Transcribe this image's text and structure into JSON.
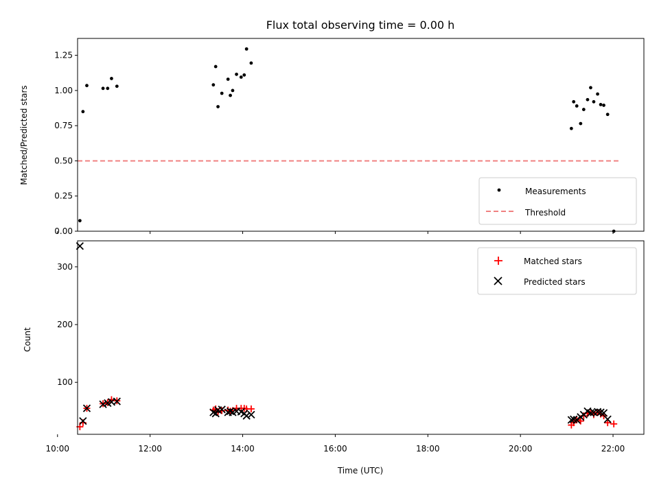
{
  "colors": {
    "measurement": "#000000",
    "threshold": "#f08080",
    "matched": "#ff0000",
    "predicted": "#000000",
    "frame": "#000000",
    "legend_border": "#cccccc"
  },
  "chart_data": [
    {
      "type": "scatter",
      "title": "Flux total observing time = 0.00 h",
      "xlabel": "",
      "ylabel": "Matched/Predicted stars",
      "x_unit": "time (UTC)",
      "xlim": [
        "10:26",
        "22:40"
      ],
      "ylim": [
        0,
        1.37
      ],
      "yticks": [
        0.0,
        0.25,
        0.5,
        0.75,
        1.0,
        1.25
      ],
      "ytick_labels": [
        "0.00",
        "0.25",
        "0.50",
        "0.75",
        "1.00",
        "1.25"
      ],
      "legend_position": "lower right",
      "series": [
        {
          "name": "Measurements",
          "marker": "dot",
          "points": [
            [
              "10:29",
              0.075
            ],
            [
              "10:33",
              0.85
            ],
            [
              "10:38",
              1.035
            ],
            [
              "10:59",
              1.015
            ],
            [
              "11:05",
              1.015
            ],
            [
              "11:10",
              1.085
            ],
            [
              "11:17",
              1.03
            ],
            [
              "13:22",
              1.04
            ],
            [
              "13:25",
              1.17
            ],
            [
              "13:28",
              0.885
            ],
            [
              "13:33",
              0.98
            ],
            [
              "13:41",
              1.08
            ],
            [
              "13:44",
              0.965
            ],
            [
              "13:47",
              1.0
            ],
            [
              "13:52",
              1.115
            ],
            [
              "13:58",
              1.095
            ],
            [
              "14:02",
              1.11
            ],
            [
              "14:05",
              1.295
            ],
            [
              "14:11",
              1.195
            ],
            [
              "21:06",
              0.73
            ],
            [
              "21:09",
              0.92
            ],
            [
              "21:13",
              0.89
            ],
            [
              "21:18",
              0.765
            ],
            [
              "21:22",
              0.865
            ],
            [
              "21:27",
              0.935
            ],
            [
              "21:31",
              1.02
            ],
            [
              "21:35",
              0.92
            ],
            [
              "21:40",
              0.975
            ],
            [
              "21:44",
              0.9
            ],
            [
              "21:48",
              0.895
            ],
            [
              "21:53",
              0.83
            ],
            [
              "22:01",
              0.0
            ]
          ]
        },
        {
          "name": "Threshold",
          "marker": "dashed-line",
          "points": [
            [
              "10:26",
              0.5
            ],
            [
              "22:07",
              0.5
            ]
          ]
        }
      ]
    },
    {
      "type": "scatter",
      "title": "",
      "xlabel": "Time (UTC)",
      "ylabel": "Count",
      "x_unit": "time (UTC)",
      "xlim": [
        "10:26",
        "22:40"
      ],
      "ylim": [
        10,
        345
      ],
      "yticks": [
        100,
        200,
        300
      ],
      "ytick_labels": [
        "100",
        "200",
        "300"
      ],
      "xtick_labels": [
        "10:00",
        "12:00",
        "14:00",
        "16:00",
        "18:00",
        "20:00",
        "22:00"
      ],
      "legend_position": "upper right",
      "series": [
        {
          "name": "Matched stars",
          "marker": "plus",
          "points": [
            [
              "10:29",
              23
            ],
            [
              "10:33",
              30
            ],
            [
              "10:38",
              55
            ],
            [
              "10:59",
              63
            ],
            [
              "11:05",
              65
            ],
            [
              "11:10",
              70
            ],
            [
              "11:17",
              68
            ],
            [
              "13:22",
              52
            ],
            [
              "13:25",
              54
            ],
            [
              "13:28",
              49
            ],
            [
              "13:33",
              51
            ],
            [
              "13:41",
              52
            ],
            [
              "13:44",
              50
            ],
            [
              "13:47",
              51
            ],
            [
              "13:52",
              55
            ],
            [
              "13:58",
              55
            ],
            [
              "14:02",
              55
            ],
            [
              "14:05",
              54
            ],
            [
              "14:11",
              54
            ],
            [
              "21:06",
              26
            ],
            [
              "21:09",
              30
            ],
            [
              "21:13",
              35
            ],
            [
              "21:18",
              33
            ],
            [
              "21:22",
              42
            ],
            [
              "21:27",
              46
            ],
            [
              "21:31",
              48
            ],
            [
              "21:35",
              44
            ],
            [
              "21:40",
              48
            ],
            [
              "21:44",
              45
            ],
            [
              "21:48",
              42
            ],
            [
              "21:53",
              30
            ],
            [
              "22:01",
              28
            ]
          ]
        },
        {
          "name": "Predicted stars",
          "marker": "x",
          "points": [
            [
              "10:29",
              336
            ],
            [
              "10:33",
              33
            ],
            [
              "10:38",
              55
            ],
            [
              "10:59",
              62
            ],
            [
              "11:05",
              64
            ],
            [
              "11:10",
              66
            ],
            [
              "11:17",
              67
            ],
            [
              "13:22",
              48
            ],
            [
              "13:25",
              46
            ],
            [
              "13:28",
              52
            ],
            [
              "13:33",
              53
            ],
            [
              "13:41",
              48
            ],
            [
              "13:44",
              50
            ],
            [
              "13:47",
              48
            ],
            [
              "13:52",
              50
            ],
            [
              "13:58",
              49
            ],
            [
              "14:02",
              46
            ],
            [
              "14:05",
              42
            ],
            [
              "14:11",
              44
            ],
            [
              "21:06",
              35
            ],
            [
              "21:09",
              36
            ],
            [
              "21:13",
              35
            ],
            [
              "21:18",
              40
            ],
            [
              "21:22",
              44
            ],
            [
              "21:27",
              50
            ],
            [
              "21:31",
              47
            ],
            [
              "21:35",
              48
            ],
            [
              "21:40",
              49
            ],
            [
              "21:44",
              48
            ],
            [
              "21:48",
              47
            ],
            [
              "21:53",
              36
            ]
          ]
        }
      ]
    }
  ]
}
